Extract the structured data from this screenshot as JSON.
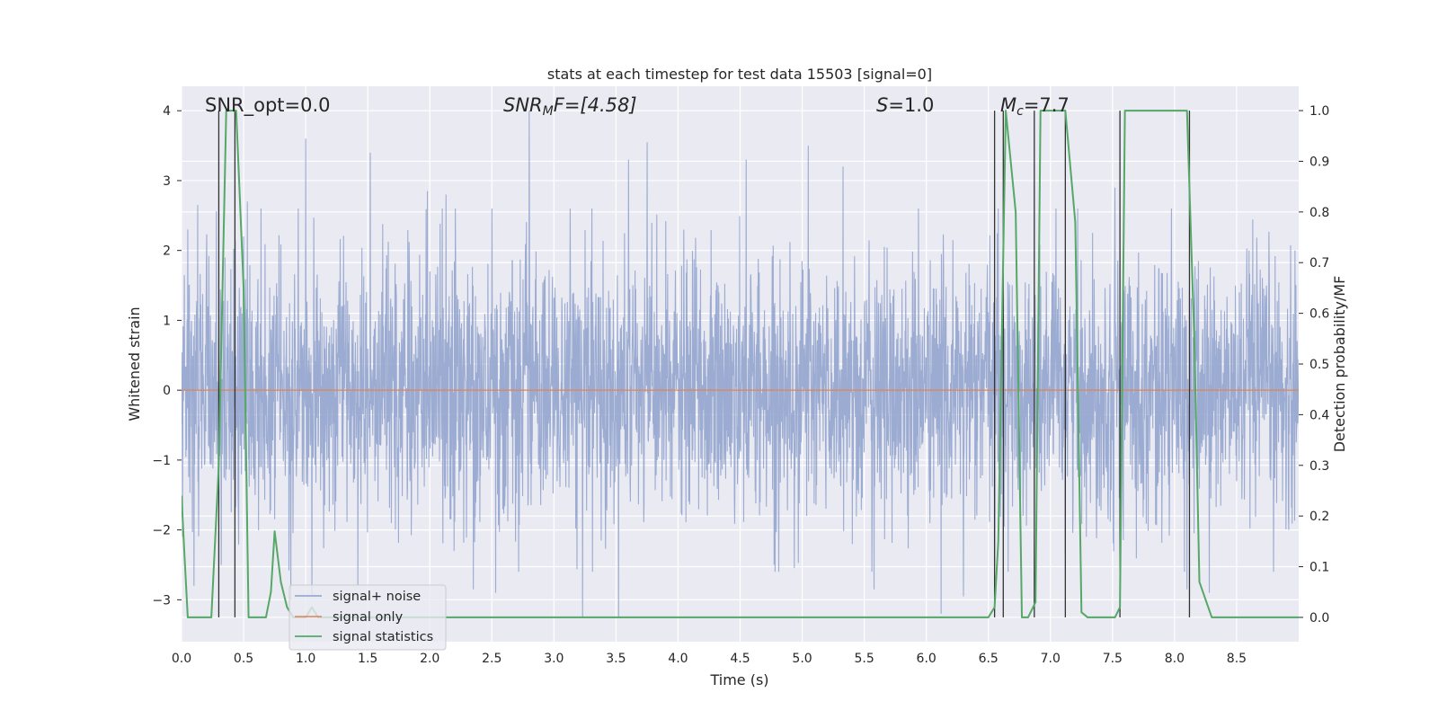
{
  "chart_data": {
    "type": "line",
    "title": "stats at each timestep for test data 15503 [signal=0]",
    "xlabel": "Time (s)",
    "ylabel": "Whitened strain",
    "y2label": "Detection probability/MF",
    "xlim": [
      0,
      9.0
    ],
    "ylim": [
      -3.6,
      4.35
    ],
    "y2lim": [
      -0.048,
      1.048
    ],
    "x_ticks": [
      0.0,
      0.5,
      1.0,
      1.5,
      2.0,
      2.5,
      3.0,
      3.5,
      4.0,
      4.5,
      5.0,
      5.5,
      6.0,
      6.5,
      7.0,
      7.5,
      8.0,
      8.5
    ],
    "x_tick_labels": [
      "0.0",
      "0.5",
      "1.0",
      "1.5",
      "2.0",
      "2.5",
      "3.0",
      "3.5",
      "4.0",
      "4.5",
      "5.0",
      "5.5",
      "6.0",
      "6.5",
      "7.0",
      "7.5",
      "8.0",
      "8.5"
    ],
    "y_ticks": [
      -3,
      -2,
      -1,
      0,
      1,
      2,
      3,
      4
    ],
    "y_tick_labels": [
      "−3",
      "−2",
      "−1",
      "0",
      "1",
      "2",
      "3",
      "4"
    ],
    "y2_ticks": [
      0.0,
      0.1,
      0.2,
      0.3,
      0.4,
      0.5,
      0.6,
      0.7,
      0.8,
      0.9,
      1.0
    ],
    "y2_tick_labels": [
      "0.0",
      "0.1",
      "0.2",
      "0.3",
      "0.4",
      "0.5",
      "0.6",
      "0.7",
      "0.8",
      "0.9",
      "1.0"
    ],
    "grid": true,
    "legend": {
      "placement": "lower-left",
      "entries": [
        {
          "label": "signal+ noise",
          "color": "#8da0cb"
        },
        {
          "label": "signal only",
          "color": "#dd8452"
        },
        {
          "label": "signal statistics",
          "color": "#55a868"
        }
      ]
    },
    "annotations": {
      "snr_opt": "SNR_opt=0.0",
      "snr_mf_main": "SNR",
      "snr_mf_sub": "M",
      "snr_mf_rest": "F=[4.58]",
      "s_main": "S",
      "s_rest": "=1.0",
      "mc_main": "M",
      "mc_sub": "c",
      "mc_rest": "=7.7"
    },
    "series": [
      {
        "name": "signal+ noise",
        "color": "#8da0cb",
        "kind": "noise",
        "sigma": 0.9,
        "duration": 9.0,
        "peaks": [
          [
            0.05,
            2.3
          ],
          [
            0.13,
            2.65
          ],
          [
            0.35,
            1.9
          ],
          [
            0.53,
            2.7
          ],
          [
            0.64,
            2.6
          ],
          [
            1.0,
            3.6
          ],
          [
            1.52,
            3.4
          ],
          [
            1.98,
            2.85
          ],
          [
            2.13,
            2.8
          ],
          [
            2.8,
            4.0
          ],
          [
            3.6,
            3.3
          ],
          [
            3.75,
            3.55
          ],
          [
            4.55,
            3.3
          ],
          [
            5.05,
            3.5
          ],
          [
            5.33,
            3.2
          ],
          [
            6.58,
            2.6
          ],
          [
            7.52,
            2.9
          ],
          [
            8.1,
            2.1
          ],
          [
            8.97,
            2.0
          ]
        ],
        "troughs": [
          [
            0.1,
            -2.8
          ],
          [
            0.32,
            -2.5
          ],
          [
            0.88,
            -3.0
          ],
          [
            1.05,
            -2.95
          ],
          [
            1.42,
            -2.8
          ],
          [
            2.35,
            -2.85
          ],
          [
            2.53,
            -2.9
          ],
          [
            3.23,
            -3.25
          ],
          [
            3.52,
            -3.25
          ],
          [
            5.58,
            -2.85
          ],
          [
            6.12,
            -3.2
          ],
          [
            6.3,
            -2.95
          ],
          [
            6.55,
            -2.5
          ],
          [
            8.1,
            -2.85
          ],
          [
            8.28,
            -2.9
          ],
          [
            8.92,
            -2.0
          ]
        ]
      },
      {
        "name": "signal only",
        "color": "#dd8452",
        "kind": "flat",
        "x": [
          0.0,
          9.0
        ],
        "y": [
          0.0,
          0.0
        ]
      },
      {
        "name": "signal statistics",
        "color": "#55a868",
        "kind": "line",
        "axis": "right",
        "x": [
          0.0,
          0.02,
          0.05,
          0.24,
          0.3,
          0.36,
          0.4,
          0.44,
          0.5,
          0.54,
          0.68,
          0.72,
          0.75,
          0.8,
          0.85,
          0.9,
          1.0,
          1.05,
          1.1,
          1.2,
          6.5,
          6.55,
          6.58,
          6.64,
          6.72,
          6.77,
          6.82,
          6.88,
          6.92,
          6.95,
          7.05,
          7.12,
          7.2,
          7.25,
          7.3,
          7.52,
          7.56,
          7.6,
          7.9,
          8.1,
          8.16,
          8.2,
          8.3,
          8.5,
          9.0
        ],
        "y": [
          0.24,
          0.14,
          0.0,
          0.0,
          0.3,
          1.0,
          1.0,
          1.0,
          0.65,
          0.0,
          0.0,
          0.05,
          0.17,
          0.07,
          0.02,
          0.0,
          0.0,
          0.02,
          0.0,
          0.0,
          0.0,
          0.02,
          0.15,
          1.0,
          0.8,
          0.0,
          0.0,
          0.03,
          1.0,
          1.0,
          1.0,
          1.0,
          0.78,
          0.01,
          0.0,
          0.0,
          0.02,
          1.0,
          1.0,
          1.0,
          0.54,
          0.07,
          0.0,
          0.0,
          0.0
        ]
      },
      {
        "name": "timestep markers",
        "color": "#333333",
        "kind": "vlines",
        "axis": "right",
        "x": [
          0.3,
          0.43,
          6.55,
          6.62,
          6.87,
          7.12,
          7.56,
          8.12
        ],
        "y": [
          1.0,
          1.0,
          1.0,
          1.0,
          1.0,
          1.0,
          1.0,
          1.0
        ]
      }
    ]
  }
}
